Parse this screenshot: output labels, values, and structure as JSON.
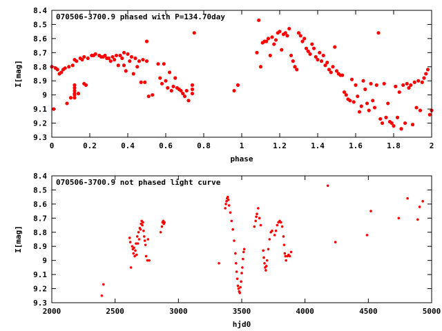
{
  "chart_data": [
    {
      "type": "scatter",
      "title": "070506-3700.9 phased with P=134.70day",
      "xlabel": "phase",
      "ylabel": "I[mag]",
      "xlim": [
        0,
        2
      ],
      "ylim": [
        8.4,
        9.3
      ],
      "y_inverted": true,
      "xticks": [
        0,
        0.2,
        0.4,
        0.6,
        0.8,
        1,
        1.2,
        1.4,
        1.6,
        1.8,
        2
      ],
      "xtick_labels": [
        "0",
        "0.2",
        "0.4",
        "0.6",
        "0.8",
        "1",
        "1.2",
        "1.4",
        "1.6",
        "1.8",
        "2"
      ],
      "yticks": [
        8.4,
        8.5,
        8.6,
        8.7,
        8.8,
        8.9,
        9.0,
        9.1,
        9.2,
        9.3
      ],
      "ytick_labels": [
        "8.4",
        "8.5",
        "8.6",
        "8.7",
        "8.8",
        "8.9",
        "9",
        "9.1",
        "9.2",
        "9.3"
      ],
      "marker_color": "#ff0000",
      "points": [
        [
          0.0,
          8.8
        ],
        [
          0.01,
          9.1
        ],
        [
          0.02,
          8.81
        ],
        [
          0.03,
          8.82
        ],
        [
          0.04,
          8.85
        ],
        [
          0.05,
          8.84
        ],
        [
          0.06,
          8.82
        ],
        [
          0.07,
          8.81
        ],
        [
          0.08,
          9.06
        ],
        [
          0.09,
          8.8
        ],
        [
          0.1,
          9.02
        ],
        [
          0.11,
          8.79
        ],
        [
          0.12,
          8.75
        ],
        [
          0.13,
          8.76
        ],
        [
          0.12,
          8.93
        ],
        [
          0.12,
          8.95
        ],
        [
          0.12,
          8.97
        ],
        [
          0.12,
          8.99
        ],
        [
          0.12,
          9.0
        ],
        [
          0.12,
          9.02
        ],
        [
          0.14,
          8.99
        ],
        [
          0.15,
          8.74
        ],
        [
          0.16,
          8.75
        ],
        [
          0.17,
          8.73
        ],
        [
          0.17,
          8.92
        ],
        [
          0.18,
          8.93
        ],
        [
          0.19,
          8.74
        ],
        [
          0.21,
          8.72
        ],
        [
          0.22,
          8.72
        ],
        [
          0.23,
          8.71
        ],
        [
          0.25,
          8.72
        ],
        [
          0.26,
          8.73
        ],
        [
          0.27,
          8.73
        ],
        [
          0.28,
          8.72
        ],
        [
          0.29,
          8.74
        ],
        [
          0.3,
          8.74
        ],
        [
          0.31,
          8.76
        ],
        [
          0.32,
          8.73
        ],
        [
          0.33,
          8.75
        ],
        [
          0.34,
          8.72
        ],
        [
          0.35,
          8.79
        ],
        [
          0.36,
          8.72
        ],
        [
          0.37,
          8.74
        ],
        [
          0.38,
          8.7
        ],
        [
          0.38,
          8.79
        ],
        [
          0.39,
          8.83
        ],
        [
          0.4,
          8.71
        ],
        [
          0.41,
          8.76
        ],
        [
          0.42,
          8.73
        ],
        [
          0.43,
          8.85
        ],
        [
          0.44,
          8.74
        ],
        [
          0.45,
          8.8
        ],
        [
          0.46,
          8.76
        ],
        [
          0.47,
          8.91
        ],
        [
          0.48,
          8.75
        ],
        [
          0.49,
          8.91
        ],
        [
          0.5,
          8.62
        ],
        [
          0.5,
          8.76
        ],
        [
          0.51,
          9.01
        ],
        [
          0.53,
          9.0
        ],
        [
          0.56,
          8.78
        ],
        [
          0.57,
          8.88
        ],
        [
          0.58,
          8.92
        ],
        [
          0.59,
          8.78
        ],
        [
          0.6,
          8.9
        ],
        [
          0.61,
          8.95
        ],
        [
          0.62,
          8.84
        ],
        [
          0.63,
          8.97
        ],
        [
          0.64,
          8.94
        ],
        [
          0.65,
          8.88
        ],
        [
          0.66,
          8.95
        ],
        [
          0.67,
          8.96
        ],
        [
          0.68,
          8.97
        ],
        [
          0.69,
          8.99
        ],
        [
          0.7,
          9.01
        ],
        [
          0.71,
          8.97
        ],
        [
          0.72,
          9.04
        ],
        [
          0.74,
          8.96
        ],
        [
          0.74,
          8.99
        ],
        [
          0.74,
          8.93
        ],
        [
          0.75,
          8.56
        ],
        [
          0.96,
          8.97
        ],
        [
          0.98,
          8.93
        ],
        [
          1.09,
          8.47
        ],
        [
          1.08,
          8.7
        ],
        [
          1.1,
          8.8
        ],
        [
          1.11,
          8.63
        ],
        [
          1.12,
          8.62
        ],
        [
          1.13,
          8.62
        ],
        [
          1.14,
          8.6
        ],
        [
          1.15,
          8.72
        ],
        [
          1.16,
          8.59
        ],
        [
          1.17,
          8.64
        ],
        [
          1.18,
          8.61
        ],
        [
          1.19,
          8.56
        ],
        [
          1.2,
          8.55
        ],
        [
          1.21,
          8.68
        ],
        [
          1.22,
          8.57
        ],
        [
          1.23,
          8.56
        ],
        [
          1.24,
          8.58
        ],
        [
          1.25,
          8.53
        ],
        [
          1.26,
          8.72
        ],
        [
          1.27,
          8.76
        ],
        [
          1.28,
          8.8
        ],
        [
          1.29,
          8.82
        ],
        [
          1.3,
          8.56
        ],
        [
          1.31,
          8.58
        ],
        [
          1.32,
          8.62
        ],
        [
          1.33,
          8.6
        ],
        [
          1.34,
          8.67
        ],
        [
          1.35,
          8.69
        ],
        [
          1.36,
          8.71
        ],
        [
          1.37,
          8.64
        ],
        [
          1.38,
          8.67
        ],
        [
          1.39,
          8.73
        ],
        [
          1.4,
          8.75
        ],
        [
          1.41,
          8.7
        ],
        [
          1.42,
          8.76
        ],
        [
          1.43,
          8.72
        ],
        [
          1.44,
          8.79
        ],
        [
          1.45,
          8.77
        ],
        [
          1.46,
          8.82
        ],
        [
          1.47,
          8.84
        ],
        [
          1.48,
          8.8
        ],
        [
          1.49,
          8.66
        ],
        [
          1.5,
          8.83
        ],
        [
          1.51,
          8.85
        ],
        [
          1.52,
          8.86
        ],
        [
          1.53,
          8.86
        ],
        [
          1.54,
          8.98
        ],
        [
          1.55,
          9.0
        ],
        [
          1.56,
          9.03
        ],
        [
          1.57,
          9.04
        ],
        [
          1.58,
          8.89
        ],
        [
          1.59,
          9.05
        ],
        [
          1.6,
          8.93
        ],
        [
          1.61,
          9.01
        ],
        [
          1.62,
          9.12
        ],
        [
          1.63,
          9.08
        ],
        [
          1.64,
          8.9
        ],
        [
          1.65,
          8.96
        ],
        [
          1.66,
          9.06
        ],
        [
          1.67,
          9.11
        ],
        [
          1.68,
          8.92
        ],
        [
          1.69,
          9.04
        ],
        [
          1.7,
          9.09
        ],
        [
          1.71,
          8.93
        ],
        [
          1.72,
          8.56
        ],
        [
          1.73,
          9.17
        ],
        [
          1.74,
          9.2
        ],
        [
          1.75,
          8.92
        ],
        [
          1.76,
          9.16
        ],
        [
          1.77,
          9.06
        ],
        [
          1.78,
          9.19
        ],
        [
          1.79,
          9.2
        ],
        [
          1.8,
          9.22
        ],
        [
          1.81,
          8.94
        ],
        [
          1.82,
          9.16
        ],
        [
          1.83,
          8.98
        ],
        [
          1.84,
          9.24
        ],
        [
          1.85,
          8.93
        ],
        [
          1.86,
          9.2
        ],
        [
          1.87,
          8.92
        ],
        [
          1.88,
          8.95
        ],
        [
          1.89,
          8.93
        ],
        [
          1.9,
          9.21
        ],
        [
          1.91,
          8.91
        ],
        [
          1.92,
          9.09
        ],
        [
          1.93,
          8.9
        ],
        [
          1.94,
          9.11
        ],
        [
          1.95,
          8.91
        ],
        [
          1.96,
          8.88
        ],
        [
          1.97,
          8.85
        ],
        [
          1.98,
          8.82
        ],
        [
          1.99,
          9.14
        ],
        [
          2.0,
          9.11
        ]
      ]
    },
    {
      "type": "scatter",
      "title": "070506-3700.9 not phased light curve",
      "xlabel": "hjd0",
      "ylabel": "I[mag]",
      "xlim": [
        2000,
        5000
      ],
      "ylim": [
        8.4,
        9.3
      ],
      "y_inverted": true,
      "xticks": [
        2000,
        2500,
        3000,
        3500,
        4000,
        4500,
        5000
      ],
      "xtick_labels": [
        "2000",
        "2500",
        "3000",
        "3500",
        "4000",
        "4500",
        "5000"
      ],
      "yticks": [
        8.4,
        8.5,
        8.6,
        8.7,
        8.8,
        8.9,
        9.0,
        9.1,
        9.2,
        9.3
      ],
      "ytick_labels": [
        "8.4",
        "8.5",
        "8.6",
        "8.7",
        "8.8",
        "8.9",
        "9",
        "9.1",
        "9.2",
        "9.3"
      ],
      "marker_color": "#ff0000",
      "points": [
        [
          2395,
          9.25
        ],
        [
          2408,
          9.17
        ],
        [
          2615,
          8.84
        ],
        [
          2620,
          8.87
        ],
        [
          2625,
          9.05
        ],
        [
          2635,
          8.9
        ],
        [
          2640,
          8.92
        ],
        [
          2645,
          8.95
        ],
        [
          2650,
          8.91
        ],
        [
          2655,
          8.97
        ],
        [
          2660,
          8.93
        ],
        [
          2665,
          8.88
        ],
        [
          2670,
          8.96
        ],
        [
          2675,
          8.83
        ],
        [
          2680,
          8.88
        ],
        [
          2685,
          8.8
        ],
        [
          2690,
          8.85
        ],
        [
          2695,
          8.77
        ],
        [
          2700,
          8.78
        ],
        [
          2705,
          8.74
        ],
        [
          2710,
          8.72
        ],
        [
          2715,
          8.75
        ],
        [
          2720,
          8.73
        ],
        [
          2725,
          8.79
        ],
        [
          2730,
          8.83
        ],
        [
          2735,
          8.86
        ],
        [
          2740,
          8.89
        ],
        [
          2745,
          8.97
        ],
        [
          2755,
          9.0
        ],
        [
          2760,
          8.85
        ],
        [
          2770,
          9.0
        ],
        [
          2860,
          8.8
        ],
        [
          2870,
          8.76
        ],
        [
          2875,
          8.73
        ],
        [
          2880,
          8.72
        ],
        [
          2885,
          8.74
        ],
        [
          2890,
          8.73
        ],
        [
          3320,
          9.02
        ],
        [
          3370,
          8.63
        ],
        [
          3375,
          8.6
        ],
        [
          3380,
          8.58
        ],
        [
          3385,
          8.56
        ],
        [
          3390,
          8.55
        ],
        [
          3395,
          8.57
        ],
        [
          3400,
          8.61
        ],
        [
          3410,
          8.66
        ],
        [
          3420,
          8.72
        ],
        [
          3430,
          8.78
        ],
        [
          3440,
          8.86
        ],
        [
          3450,
          8.95
        ],
        [
          3455,
          9.02
        ],
        [
          3460,
          9.08
        ],
        [
          3465,
          9.13
        ],
        [
          3470,
          9.18
        ],
        [
          3475,
          9.2
        ],
        [
          3480,
          9.22
        ],
        [
          3485,
          9.23
        ],
        [
          3490,
          9.19
        ],
        [
          3495,
          9.15
        ],
        [
          3500,
          9.09
        ],
        [
          3505,
          9.05
        ],
        [
          3510,
          8.99
        ],
        [
          3515,
          8.94
        ],
        [
          3520,
          8.92
        ],
        [
          3600,
          8.76
        ],
        [
          3610,
          8.72
        ],
        [
          3615,
          8.69
        ],
        [
          3620,
          8.67
        ],
        [
          3630,
          8.63
        ],
        [
          3640,
          8.7
        ],
        [
          3650,
          8.75
        ],
        [
          3670,
          8.93
        ],
        [
          3675,
          8.98
        ],
        [
          3680,
          9.02
        ],
        [
          3685,
          9.05
        ],
        [
          3690,
          9.07
        ],
        [
          3695,
          9.04
        ],
        [
          3700,
          9.0
        ],
        [
          3710,
          8.92
        ],
        [
          3720,
          8.85
        ],
        [
          3730,
          8.8
        ],
        [
          3740,
          8.79
        ],
        [
          3760,
          8.82
        ],
        [
          3770,
          8.79
        ],
        [
          3780,
          8.75
        ],
        [
          3790,
          8.73
        ],
        [
          3800,
          8.72
        ],
        [
          3810,
          8.73
        ],
        [
          3820,
          8.76
        ],
        [
          3830,
          8.83
        ],
        [
          3835,
          8.89
        ],
        [
          3840,
          8.95
        ],
        [
          3845,
          8.97
        ],
        [
          3850,
          9.0
        ],
        [
          3860,
          8.97
        ],
        [
          3870,
          8.96
        ],
        [
          3880,
          8.97
        ],
        [
          3890,
          8.94
        ],
        [
          4180,
          8.47
        ],
        [
          4240,
          8.87
        ],
        [
          4490,
          8.82
        ],
        [
          4520,
          8.65
        ],
        [
          4740,
          8.7
        ],
        [
          4810,
          8.56
        ],
        [
          4890,
          8.71
        ],
        [
          4905,
          8.62
        ],
        [
          4930,
          8.58
        ]
      ]
    }
  ]
}
